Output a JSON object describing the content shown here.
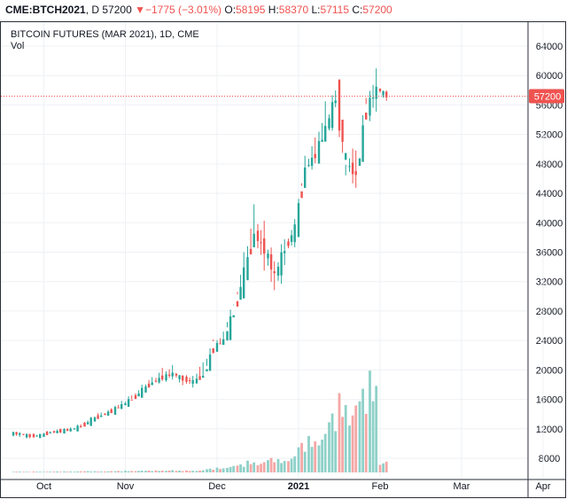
{
  "header": {
    "symbol": "CME:BTCH2021",
    "interval": "D",
    "last": "57200",
    "change_icon": "triangle-down-icon",
    "change": "−1775 (−3.01%)",
    "o_label": "O:",
    "o_value": "58195",
    "h_label": "H:",
    "h_value": "58370",
    "l_label": "L:",
    "l_value": "57115",
    "c_label": "C:",
    "c_value": "57200"
  },
  "legend": {
    "title": "BITCOIN FUTURES (MAR 2021), 1D, CME",
    "volume_label": "Vol"
  },
  "price_tag": "57200",
  "colors": {
    "up": "#26a69a",
    "down": "#ef5350",
    "up_vol": "#8fd1c9",
    "down_vol": "#f4a7a6",
    "grid": "#eef0f4"
  },
  "chart_data": {
    "type": "candlestick",
    "title": "BITCOIN FUTURES (MAR 2021), 1D, CME",
    "ylim": [
      4000,
      66000
    ],
    "y_ticks": [
      "64000",
      "60000",
      "56000",
      "52000",
      "48000",
      "44000",
      "40000",
      "36000",
      "32000",
      "28000",
      "24000",
      "20000",
      "16000",
      "12000",
      "8000"
    ],
    "x_ticks": [
      {
        "label": "Oct",
        "week": 3
      },
      {
        "label": "Nov",
        "week": 11
      },
      {
        "label": "Dec",
        "week": 20
      },
      {
        "label": "2021",
        "week": 28
      },
      {
        "label": "Feb",
        "week": 36
      },
      {
        "label": "Mar",
        "week": 44
      },
      {
        "label": "Apr",
        "week": 52
      }
    ],
    "last_price": 57200,
    "weekly_closes": [
      11300,
      11000,
      11100,
      11500,
      11700,
      11900,
      12300,
      13200,
      13800,
      14400,
      15200,
      16000,
      17200,
      18300,
      19000,
      19500,
      18700,
      18400,
      19200,
      23000,
      24000,
      27800,
      33000,
      38500,
      36300,
      32800,
      36500,
      39200,
      47500,
      49200,
      52800,
      57000,
      48000,
      46500,
      55500,
      58200,
      57200
    ],
    "weekly_highs": [
      11600,
      11300,
      11300,
      11700,
      12000,
      12200,
      12600,
      13600,
      14300,
      14800,
      15800,
      16700,
      18000,
      19200,
      20300,
      20800,
      19600,
      19400,
      21500,
      24500,
      25300,
      29500,
      36000,
      43500,
      41500,
      38000,
      38500,
      40500,
      49500,
      52000,
      57000,
      58700,
      55000,
      51500,
      58000,
      61300,
      58400
    ],
    "weekly_lows": [
      10900,
      10700,
      10800,
      11200,
      11400,
      11600,
      12000,
      12800,
      13400,
      14000,
      14700,
      15500,
      16600,
      17600,
      18000,
      18400,
      17800,
      17600,
      18600,
      21500,
      23200,
      26500,
      30600,
      34500,
      33000,
      29500,
      30500,
      35500,
      42500,
      46500,
      49500,
      52000,
      45000,
      44000,
      49500,
      53000,
      56500
    ],
    "volume": [
      150,
      120,
      160,
      140,
      170,
      190,
      200,
      230,
      210,
      240,
      260,
      300,
      330,
      360,
      380,
      420,
      350,
      360,
      400,
      700,
      900,
      1200,
      1500,
      2200,
      1900,
      2700,
      2500,
      3000,
      5500,
      6800,
      7200,
      11000,
      14800,
      12500,
      15600,
      19000,
      2000
    ]
  }
}
